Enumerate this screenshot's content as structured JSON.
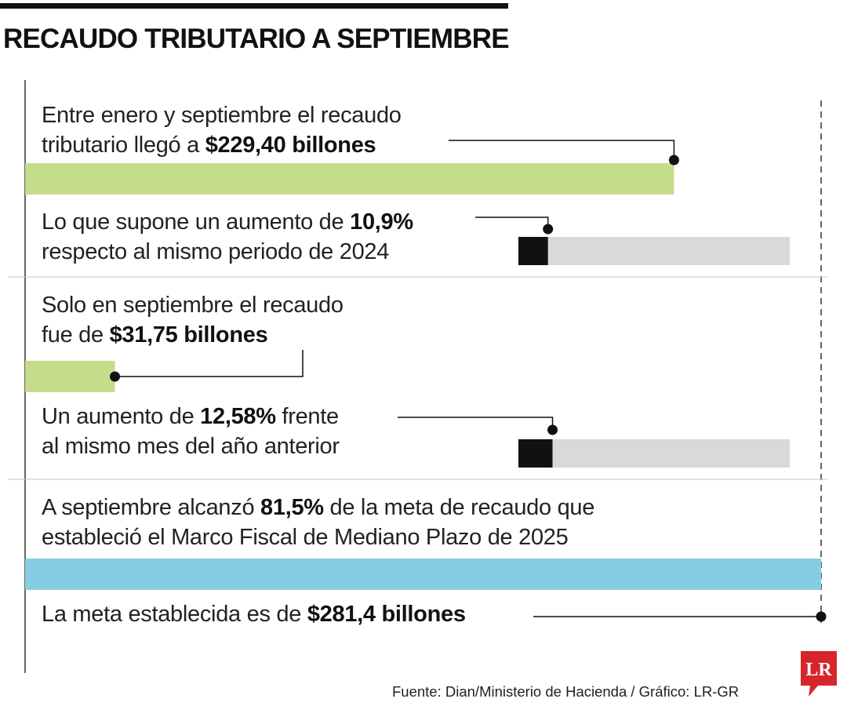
{
  "title": "RECAUDO TRIBUTARIO A SEPTIEMBRE",
  "blocks": [
    {
      "pre": "Entre enero y septiembre el recaudo",
      "pre2": "tributario llegó a ",
      "bold": "$229,40 billones",
      "post": ""
    },
    {
      "pre": "Lo que supone un aumento de ",
      "bold": "10,9%",
      "post": "",
      "line2": "respecto al mismo periodo de 2024"
    },
    {
      "pre": "Solo en septiembre el recaudo",
      "pre2": "fue de ",
      "bold": "$31,75 billones",
      "post": ""
    },
    {
      "pre": "Un aumento de ",
      "bold": "12,58%",
      "post": " frente",
      "line2": "al mismo mes del año anterior"
    },
    {
      "pre": "A septiembre alcanzó ",
      "bold": "81,5%",
      "post": " de la meta de recaudo que",
      "line2": "estableció el Marco Fiscal de Mediano Plazo de 2025"
    },
    {
      "pre": "La meta establecida es de ",
      "bold": "$281,4 billones",
      "post": ""
    }
  ],
  "source": "Fuente: Dian/Ministerio de Hacienda / Gráfico: LR-GR",
  "logo_text": "LR",
  "colors": {
    "green": "#c5dc8a",
    "blue": "#86cde3",
    "gray": "#d9d9d9",
    "black": "#111111",
    "logo_red": "#d7262b"
  },
  "chart_data": {
    "type": "bar",
    "unit": "billones",
    "goal": 281.4,
    "bars": [
      {
        "label": "Recaudo enero-septiembre",
        "value": 229.4,
        "color": "green"
      },
      {
        "label": "Recaudo septiembre",
        "value": 31.75,
        "color": "green"
      },
      {
        "label": "Meta de recaudo",
        "value": 281.4,
        "color": "blue"
      }
    ],
    "percent_bars": [
      {
        "label": "Aumento respecto al mismo periodo de 2024",
        "value": 10.9
      },
      {
        "label": "Aumento frente al mismo mes del año anterior",
        "value": 12.58
      }
    ],
    "goal_share_percent": 81.5
  }
}
